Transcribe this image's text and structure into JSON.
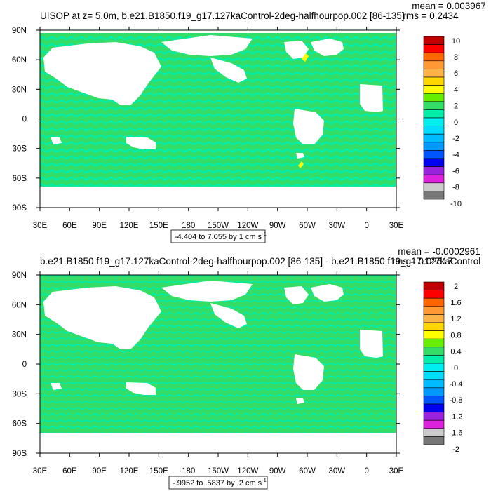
{
  "chart_data": [
    {
      "type": "heatmap",
      "title": "UISOP at z=   5.0m, b.e21.B1850.f19_g17.127kaControl-2deg-halfhourpop.002 [86-135]",
      "stats": {
        "mean": "mean = 0.003967",
        "rms": "rms = 0.2434"
      },
      "range_label": "-4.404 to 7.055 by 1 cm s",
      "range_exp": "-1",
      "x_ticks": [
        "30E",
        "60E",
        "90E",
        "120E",
        "150E",
        "180",
        "150W",
        "120W",
        "90W",
        "60W",
        "30W",
        "0",
        "30E"
      ],
      "y_ticks": [
        "90N",
        "60N",
        "30N",
        "0",
        "30S",
        "60S",
        "90S"
      ],
      "levels": [
        "10",
        "8",
        "6",
        "4",
        "2",
        "0",
        "-2",
        "-4",
        "-6",
        "-8",
        "-10"
      ],
      "colors": [
        "#C00000",
        "#FF0000",
        "#FF6600",
        "#FF9933",
        "#FFB347",
        "#FFD700",
        "#FFFF00",
        "#66EE00",
        "#33DD66",
        "#00EEAA",
        "#00EEEE",
        "#00DDFF",
        "#00BBFF",
        "#0099FF",
        "#0055FF",
        "#0000EE",
        "#9922DD",
        "#DD22DD",
        "#CCCCCC",
        "#777777"
      ]
    },
    {
      "type": "heatmap",
      "title": "b.e21.B1850.f19_g17.127kaControl-2deg-halfhourpop.002 [86-135] - b.e21.B1850.f19_g17.127kaControl",
      "stats": {
        "mean": "mean = -0.0002961",
        "rms": "rms = 0.02617"
      },
      "range_label": "-.9952 to .5837 by .2 cm s",
      "range_exp": "-1",
      "x_ticks": [
        "30E",
        "60E",
        "90E",
        "120E",
        "150E",
        "180",
        "150W",
        "120W",
        "90W",
        "60W",
        "30W",
        "0",
        "30E"
      ],
      "y_ticks": [
        "90N",
        "60N",
        "30N",
        "0",
        "30S",
        "60S",
        "90S"
      ],
      "levels": [
        "2",
        "1.6",
        "1.2",
        "0.8",
        "0.4",
        "0",
        "-0.4",
        "-0.8",
        "-1.2",
        "-1.6",
        "-2"
      ],
      "colors": [
        "#C00000",
        "#FF0000",
        "#FF6600",
        "#FF9933",
        "#FFB347",
        "#FFD700",
        "#FFFF00",
        "#66EE00",
        "#33DD66",
        "#00EEAA",
        "#00EEEE",
        "#00DDFF",
        "#00BBFF",
        "#0099FF",
        "#0055FF",
        "#0000EE",
        "#9922DD",
        "#DD22DD",
        "#CCCCCC",
        "#777777"
      ]
    }
  ]
}
